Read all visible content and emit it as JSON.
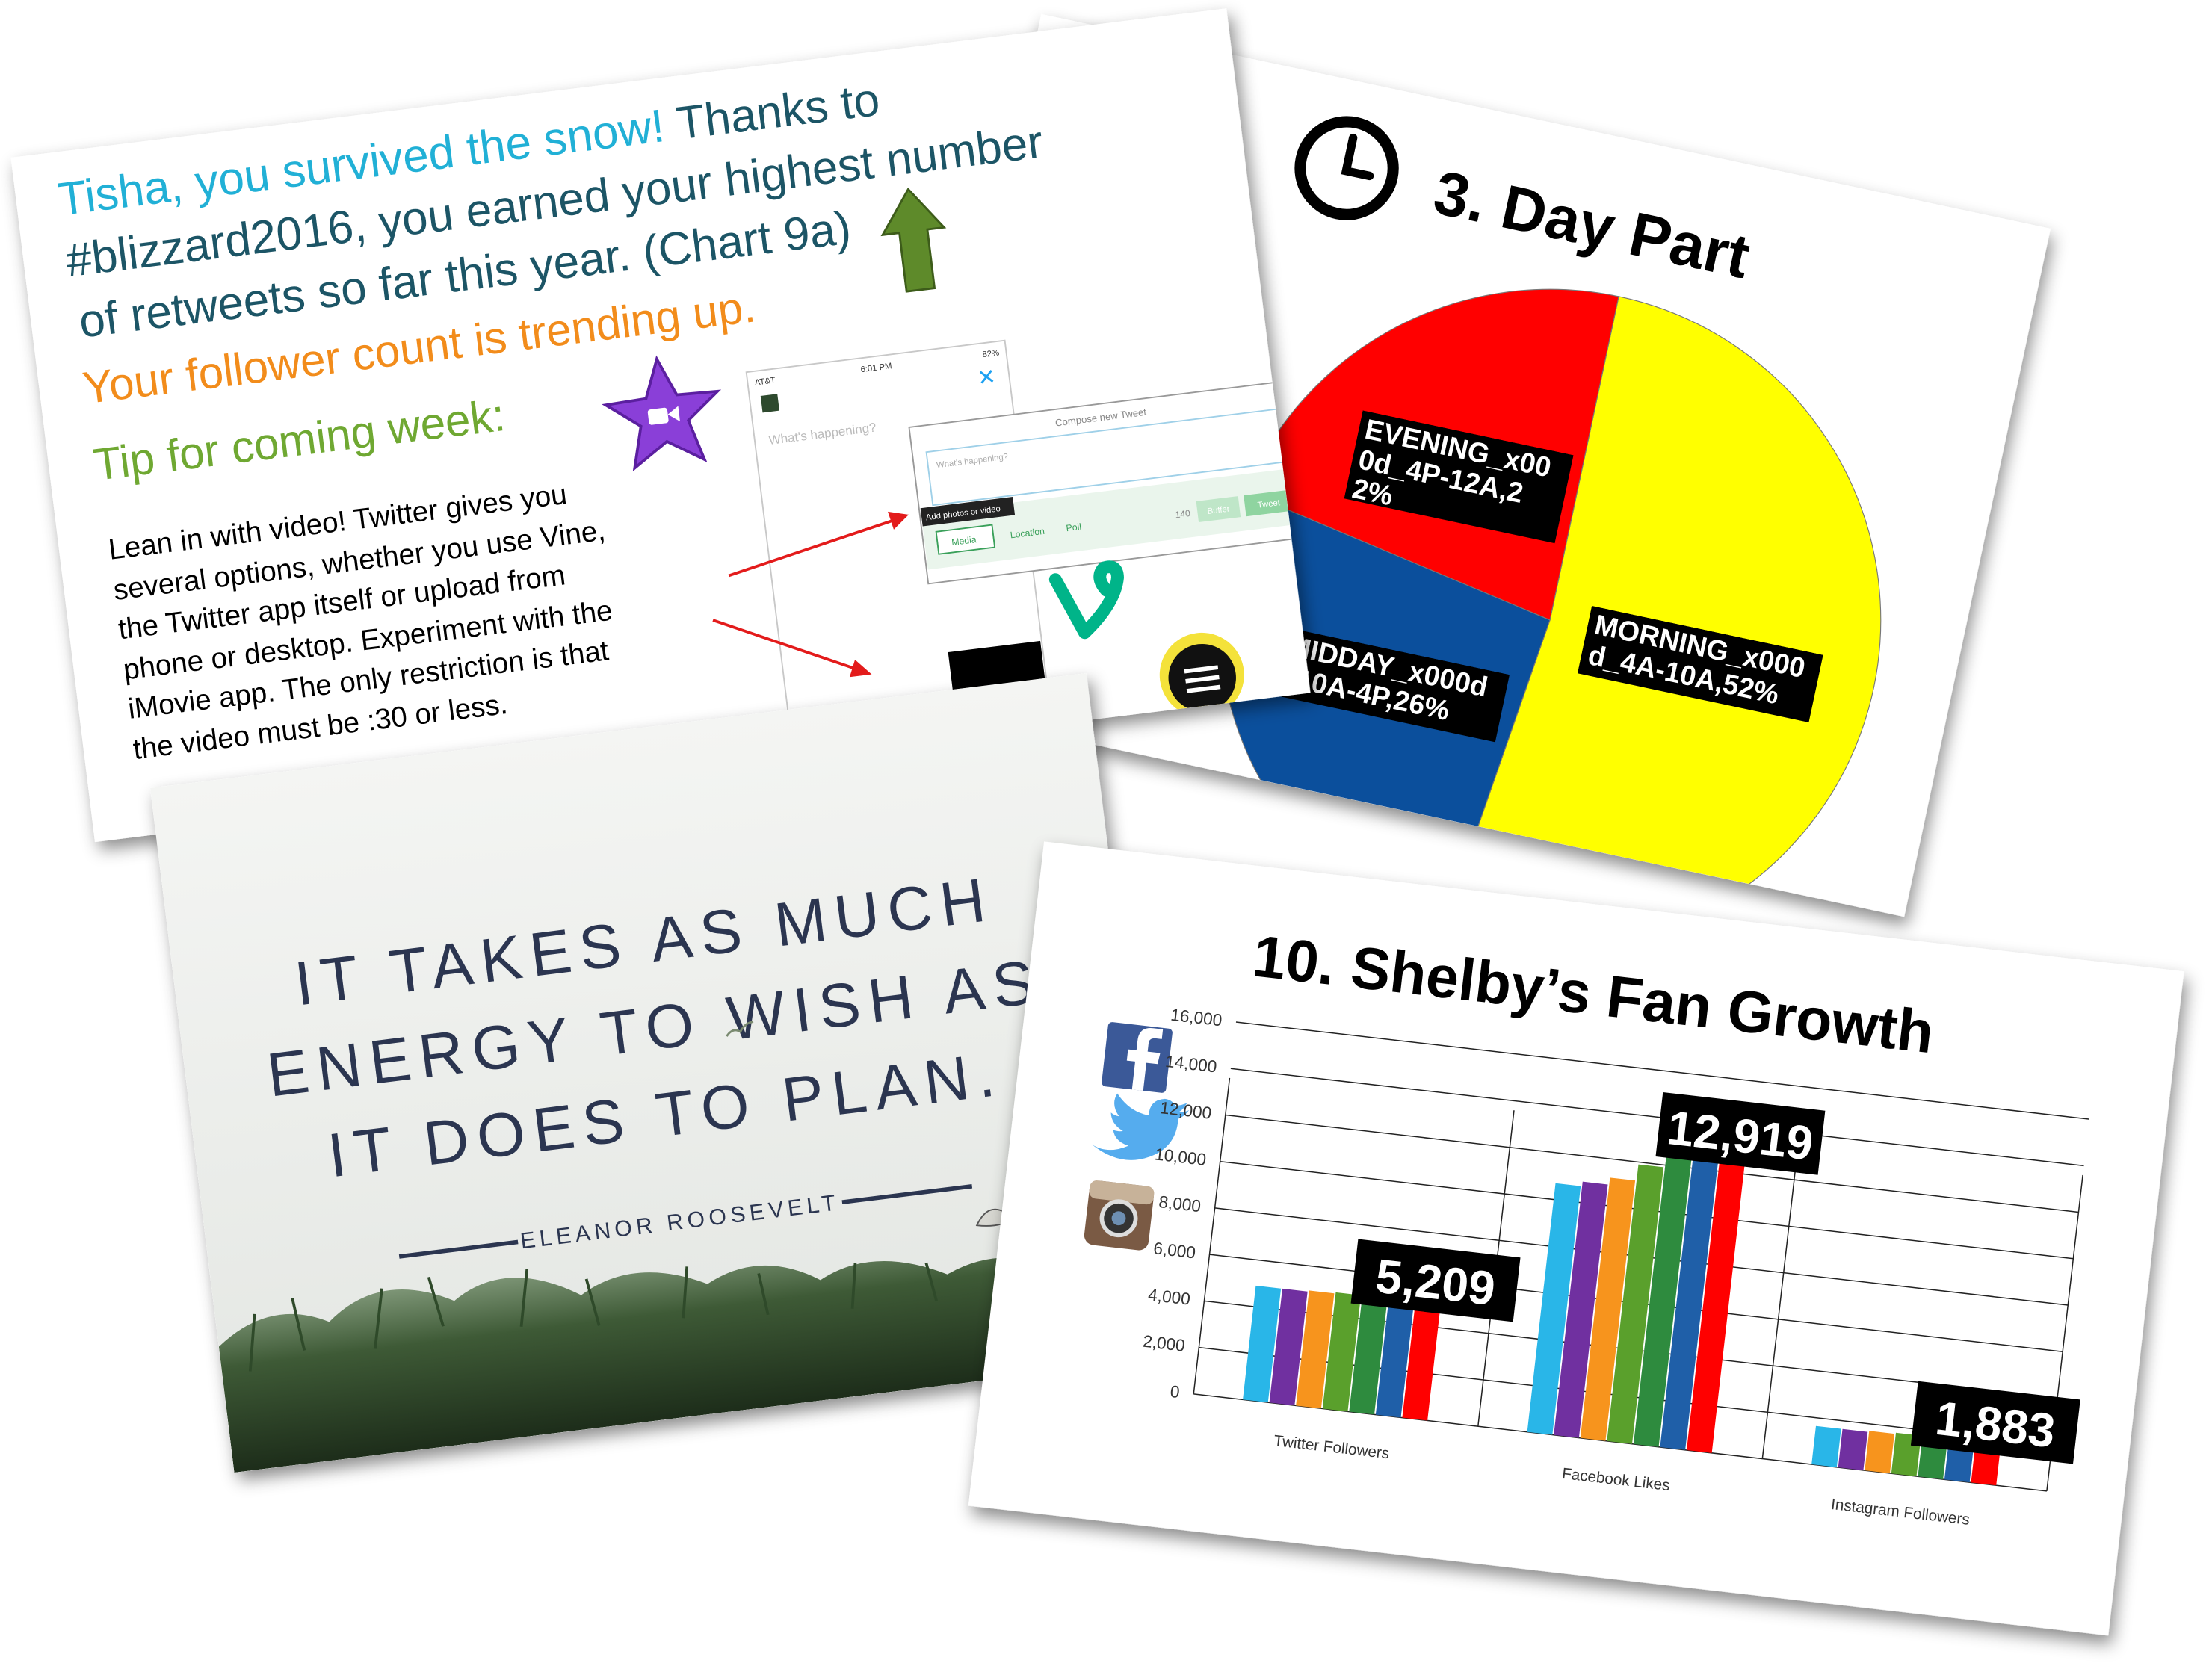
{
  "slides": {
    "update": {
      "greeting": "Tisha, you survived the snow!",
      "message_lines": [
        "Thanks to",
        "#blizzard2016, you earned your highest number",
        "of retweets so far this year. (Chart 9a)"
      ],
      "trend": "Your follower count is trending up.",
      "tip_heading": "Tip for coming week:",
      "tip_lines": [
        "Lean in with video! Twitter gives you",
        "several options, whether you use Vine,",
        "the Twitter app itself or upload from",
        "phone or desktop. Experiment with the",
        "iMovie app. The only restriction is that",
        "the video must be :30 or less."
      ],
      "screenshot": {
        "carrier": "AT&T",
        "time": "6:01 PM",
        "battery": "82%",
        "placeholder": "What's happening?",
        "dialog_title": "Compose new Tweet",
        "dialog_placeholder": "What's happening?",
        "tooltip": "Add photos or video",
        "media": "Media",
        "location": "Location",
        "poll": "Poll",
        "count": "140",
        "buffer": "Buffer",
        "tweet": "Tweet"
      }
    },
    "quote": {
      "lines": [
        "IT TAKES AS MUCH",
        "ENERGY TO WISH AS",
        "IT DOES TO PLAN."
      ],
      "author": "ELEANOR ROOSEVELT"
    }
  },
  "chart_data": [
    {
      "type": "pie",
      "title": "3. Day Part",
      "values": [
        52,
        26,
        22
      ],
      "value_labels": [
        "MORNING_x000d_4A-10A,52%",
        "MIDDAY_x000d_10A-4P,26%",
        "EVENING_x000d_4P-12A,22%"
      ],
      "colors": [
        "#ffff00",
        "#0b4f9c",
        "#ff0000"
      ]
    },
    {
      "type": "bar",
      "title": "10. Shelby’s Fan Growth",
      "categories": [
        "Twitter Followers",
        "Facebook Likes",
        "Instagram Followers"
      ],
      "series": [
        {
          "color": "#29b6e8",
          "values": [
            4900,
            10700,
            1650
          ]
        },
        {
          "color": "#7030a0",
          "values": [
            4900,
            10900,
            1650
          ]
        },
        {
          "color": "#f7941d",
          "values": [
            4950,
            11200,
            1700
          ]
        },
        {
          "color": "#5aa02c",
          "values": [
            5000,
            11900,
            1750
          ]
        },
        {
          "color": "#2e8b3e",
          "values": [
            5050,
            12500,
            1800
          ]
        },
        {
          "color": "#1f5fa8",
          "values": [
            5100,
            12700,
            1850
          ]
        },
        {
          "color": "#ff0000",
          "values": [
            5209,
            12919,
            1883
          ],
          "value_labels": [
            "5,209",
            "12,919",
            "1,883"
          ]
        }
      ],
      "ylim": [
        0,
        16000
      ],
      "yticks": [
        0,
        {
          "value": 2000,
          "label": "2,000"
        },
        {
          "value": 4000,
          "label": "4,000"
        },
        {
          "value": 6000,
          "label": "6,000"
        },
        {
          "value": 8000,
          "label": "8,000"
        },
        {
          "value": 10000,
          "label": "10,000"
        },
        {
          "value": 12000,
          "label": "12,000"
        },
        {
          "value": 14000,
          "label": "14,000"
        },
        {
          "value": 16000,
          "label": "16,000"
        }
      ],
      "grid": true
    }
  ]
}
